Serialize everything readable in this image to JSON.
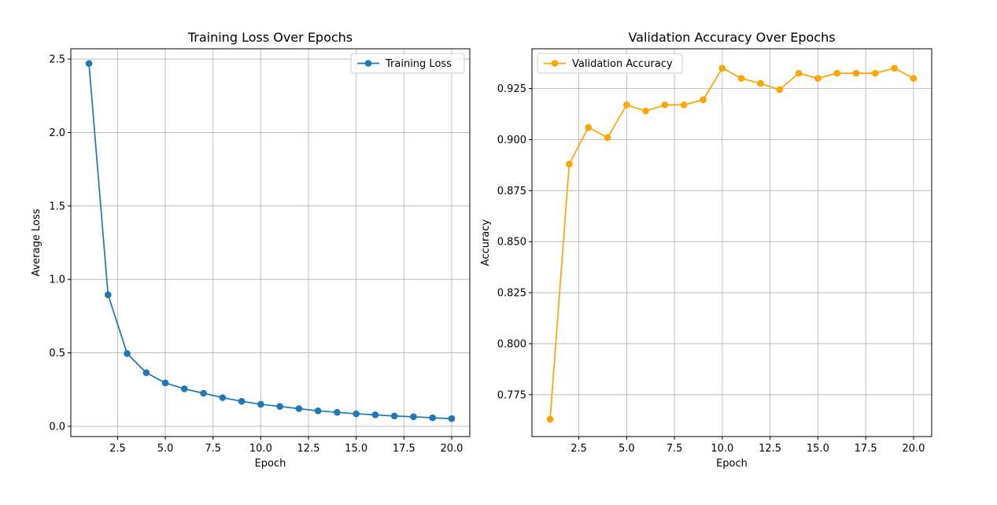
{
  "chart_data": [
    {
      "type": "line",
      "title": "Training Loss Over Epochs",
      "xlabel": "Epoch",
      "ylabel": "Average Loss",
      "x": [
        1,
        2,
        3,
        4,
        5,
        6,
        7,
        8,
        9,
        10,
        11,
        12,
        13,
        14,
        15,
        16,
        17,
        18,
        19,
        20
      ],
      "xlim": [
        0.05,
        20.95
      ],
      "ylim": [
        -0.07,
        2.57
      ],
      "xticks": [
        2.5,
        5.0,
        7.5,
        10.0,
        12.5,
        15.0,
        17.5,
        20.0
      ],
      "xtick_labels": [
        "2.5",
        "5.0",
        "7.5",
        "10.0",
        "12.5",
        "15.0",
        "17.5",
        "20.0"
      ],
      "yticks": [
        0.0,
        0.5,
        1.0,
        1.5,
        2.0,
        2.5
      ],
      "ytick_labels": [
        "0.0",
        "0.5",
        "1.0",
        "1.5",
        "2.0",
        "2.5"
      ],
      "grid": true,
      "legend_position": "top-right",
      "series": [
        {
          "name": "Training Loss",
          "color": "#1f77b4",
          "marker": "circle",
          "values": [
            2.47,
            0.895,
            0.495,
            0.365,
            0.295,
            0.255,
            0.225,
            0.195,
            0.17,
            0.15,
            0.135,
            0.12,
            0.105,
            0.095,
            0.085,
            0.078,
            0.07,
            0.065,
            0.058,
            0.052
          ]
        }
      ]
    },
    {
      "type": "line",
      "title": "Validation Accuracy Over Epochs",
      "xlabel": "Epoch",
      "ylabel": "Accuracy",
      "x": [
        1,
        2,
        3,
        4,
        5,
        6,
        7,
        8,
        9,
        10,
        11,
        12,
        13,
        14,
        15,
        16,
        17,
        18,
        19,
        20
      ],
      "xlim": [
        0.05,
        20.95
      ],
      "ylim": [
        0.7545,
        0.9445
      ],
      "xticks": [
        2.5,
        5.0,
        7.5,
        10.0,
        12.5,
        15.0,
        17.5,
        20.0
      ],
      "xtick_labels": [
        "2.5",
        "5.0",
        "7.5",
        "10.0",
        "12.5",
        "15.0",
        "17.5",
        "20.0"
      ],
      "yticks": [
        0.775,
        0.8,
        0.825,
        0.85,
        0.875,
        0.9,
        0.925
      ],
      "ytick_labels": [
        "0.775",
        "0.800",
        "0.825",
        "0.850",
        "0.875",
        "0.900",
        "0.925"
      ],
      "grid": true,
      "legend_position": "top-left",
      "series": [
        {
          "name": "Validation Accuracy",
          "color": "#ffa500",
          "marker": "circle",
          "values": [
            0.763,
            0.888,
            0.906,
            0.901,
            0.917,
            0.914,
            0.917,
            0.917,
            0.9195,
            0.935,
            0.93,
            0.9275,
            0.9245,
            0.9325,
            0.93,
            0.9325,
            0.9325,
            0.9325,
            0.935,
            0.93
          ]
        }
      ]
    }
  ]
}
